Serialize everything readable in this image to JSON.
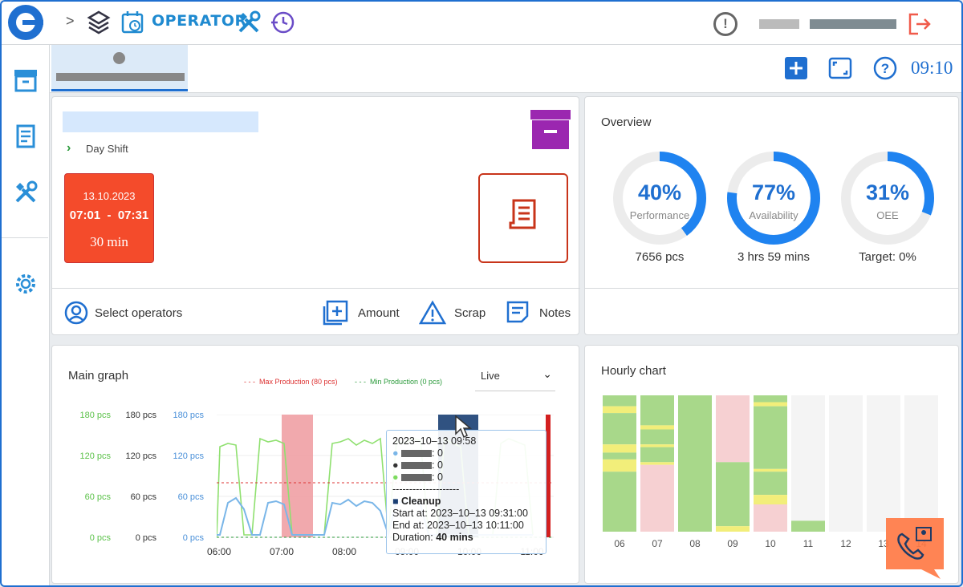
{
  "header": {
    "app_label": "OPERATOR",
    "breadcrumb_sep": ">",
    "clock": "09:10"
  },
  "colors": {
    "accent": "#1f6fd0",
    "danger": "#f44b2b",
    "purple": "#9b27b0",
    "green": "#2a9a3a"
  },
  "sidebar": {
    "items": [
      {
        "icon": "archive-icon"
      },
      {
        "icon": "receipt-icon"
      },
      {
        "icon": "tools-icon"
      },
      {
        "icon": "gear-icon"
      }
    ]
  },
  "job": {
    "shift": "Day Shift",
    "date": "13.10.2023",
    "time_start": "07:01",
    "time_sep": "-",
    "time_end": "07:31",
    "duration": "30 min"
  },
  "actions": {
    "select_operators": "Select operators",
    "amount": "Amount",
    "scrap": "Scrap",
    "notes": "Notes"
  },
  "overview": {
    "title": "Overview",
    "gauges": [
      {
        "pct": "40%",
        "value": 0.4,
        "label": "Performance",
        "sub": "7656 pcs"
      },
      {
        "pct": "77%",
        "value": 0.77,
        "label": "Availability",
        "sub": "3 hrs 59 mins"
      },
      {
        "pct": "31%",
        "value": 0.31,
        "label": "OEE",
        "sub": "Target: 0%"
      }
    ]
  },
  "main_graph": {
    "title": "Main graph",
    "legend_max": "Max Production (80 pcs)",
    "legend_min": "Min Production (0 pcs)",
    "select_value": "Live",
    "y_ticks_green": [
      "180 pcs",
      "120 pcs",
      "60 pcs",
      "0 pcs"
    ],
    "y_ticks_black": [
      "180 pcs",
      "120 pcs",
      "60 pcs",
      "0 pcs"
    ],
    "y_ticks_blue": [
      "180 pcs",
      "120 pcs",
      "60 pcs",
      "0 pcs"
    ],
    "x_ticks": [
      "06:00",
      "07:00",
      "08:00",
      "09:00",
      "10:00",
      "11:00"
    ],
    "tooltip": {
      "date": "2023–10–13 09:58",
      "v1": ": 0",
      "v2": ": 0",
      "v3": ": 0",
      "sep": "--------------------",
      "event": "Cleanup",
      "start": "Start at: 2023–10–13 09:31:00",
      "end": "End at: 2023–10–13 10:11:00",
      "duration_label": "Duration: ",
      "duration": "40 mins"
    }
  },
  "chart_data": {
    "type": "heatmap",
    "title": "Hourly chart",
    "categories": [
      "06",
      "07",
      "08",
      "09",
      "10",
      "11",
      "12",
      "13",
      "14"
    ],
    "note": "columns show green (running), yellow (short stops), pink (downtime) segments per hour"
  }
}
